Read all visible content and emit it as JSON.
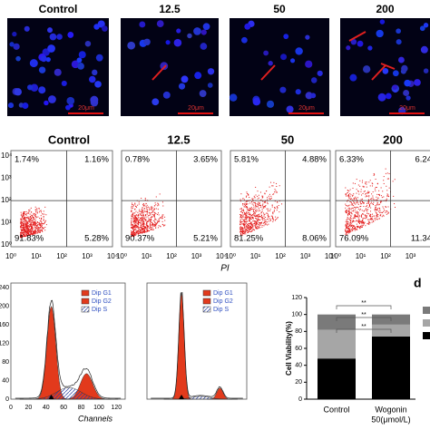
{
  "panel_a": {
    "labels": [
      "Control",
      "12.5",
      "50",
      "200"
    ],
    "scale_bars": [
      "20μm",
      "20μm",
      "20μm",
      "20μm"
    ]
  },
  "panel_b": {
    "groups": [
      {
        "label": "Control",
        "quadrants": [
          "1.74%",
          "1.16%",
          "91.83%",
          "5.28%"
        ]
      },
      {
        "label": "12.5",
        "quadrants": [
          "0.78%",
          "3.65%",
          "90.37%",
          "5.21%"
        ]
      },
      {
        "label": "50",
        "quadrants": [
          "5.81%",
          "4.88%",
          "81.25%",
          "8.06%"
        ]
      },
      {
        "label": "200",
        "quadrants": [
          "6.33%",
          "6.24",
          "76.09%",
          "11.34"
        ]
      }
    ],
    "yticks": [
      "10⁴",
      "10³",
      "10²",
      "10¹",
      "10⁰"
    ],
    "xticks": [
      "10⁰",
      "10¹",
      "10²",
      "10³",
      "10⁴"
    ],
    "x_label": "PI"
  },
  "panel_c": {
    "legend": [
      "Dip G1",
      "Dip G2",
      "Dip S"
    ],
    "yticks": [
      0,
      40,
      80,
      120,
      160,
      200,
      240
    ],
    "xticks": [
      0,
      20,
      40,
      60,
      80,
      100,
      120
    ],
    "x_label": "Channels"
  },
  "panel_d": {
    "letter": "d",
    "y_label": "Cell Viability(%)",
    "ylim": [
      0,
      120
    ],
    "yticks": [
      0,
      20,
      40,
      60,
      80,
      100,
      120
    ],
    "categories": [
      "Control",
      "Wogonin"
    ],
    "category_sub": "50(μmol/L)",
    "series": [
      {
        "color": "#000000",
        "values": [
          48,
          74
        ]
      },
      {
        "color": "#a6a6a6",
        "values": [
          34,
          14
        ]
      },
      {
        "color": "#7a7a7a",
        "values": [
          18,
          12
        ]
      }
    ],
    "significance": [
      "**",
      "**",
      "**"
    ]
  }
}
